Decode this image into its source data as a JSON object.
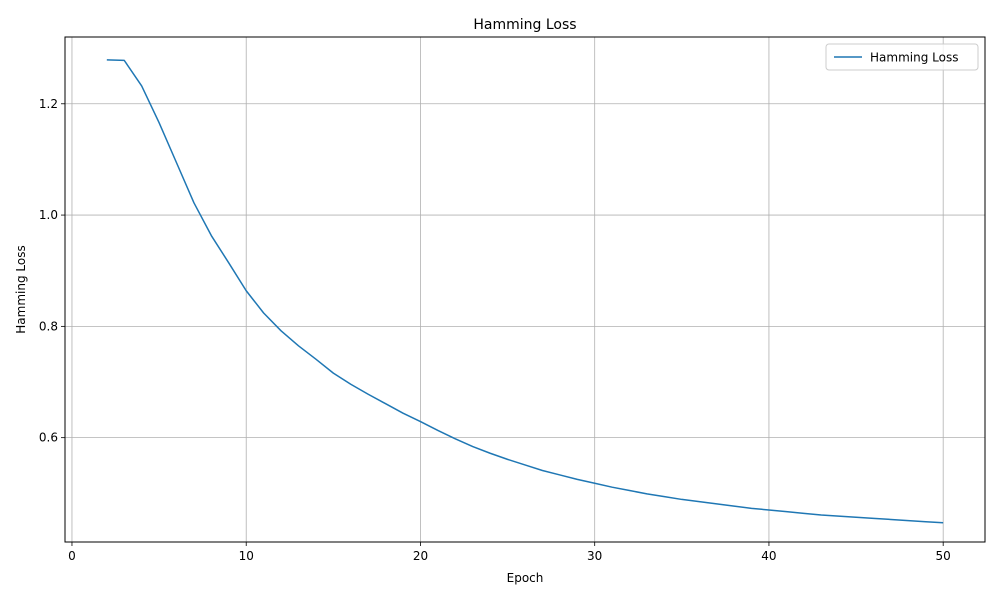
{
  "chart_data": {
    "type": "line",
    "title": "Hamming Loss",
    "xlabel": "Epoch",
    "ylabel": "Hamming Loss",
    "xlim": [
      -0.4,
      52.4
    ],
    "ylim": [
      0.4125,
      1.32
    ],
    "xticks": [
      0,
      10,
      20,
      30,
      40,
      50
    ],
    "yticks": [
      0.6,
      0.8,
      1.0,
      1.2
    ],
    "ytick_labels": [
      "0.6",
      "0.8",
      "1.0",
      "1.2"
    ],
    "grid": true,
    "legend_position": "top-right",
    "series": [
      {
        "name": "Hamming Loss",
        "color": "#1f77b4",
        "x": [
          2,
          3,
          4,
          5,
          6,
          7,
          8,
          9,
          10,
          11,
          12,
          13,
          14,
          15,
          16,
          17,
          18,
          19,
          20,
          21,
          22,
          23,
          24,
          25,
          26,
          27,
          28,
          29,
          30,
          31,
          32,
          33,
          34,
          35,
          36,
          37,
          38,
          39,
          40,
          41,
          42,
          43,
          44,
          45,
          46,
          47,
          48,
          49,
          50
        ],
        "y": [
          1.279,
          1.278,
          1.232,
          1.166,
          1.094,
          1.022,
          0.963,
          0.914,
          0.864,
          0.824,
          0.792,
          0.765,
          0.741,
          0.716,
          0.696,
          0.678,
          0.661,
          0.644,
          0.629,
          0.613,
          0.598,
          0.584,
          0.572,
          0.561,
          0.551,
          0.541,
          0.533,
          0.525,
          0.518,
          0.511,
          0.505,
          0.499,
          0.494,
          0.489,
          0.485,
          0.481,
          0.477,
          0.473,
          0.47,
          0.467,
          0.464,
          0.461,
          0.459,
          0.457,
          0.455,
          0.453,
          0.451,
          0.449,
          0.447
        ]
      }
    ]
  }
}
